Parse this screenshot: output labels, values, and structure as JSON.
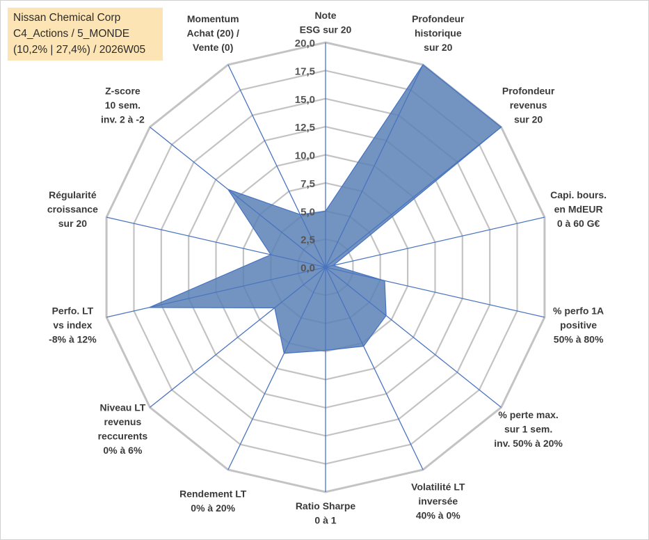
{
  "info_box": {
    "line1": "Nissan Chemical Corp",
    "line2": "C4_Actions / 5_MONDE",
    "line3": "(10,2% | 27,4%) / 2026W05"
  },
  "chart_data": {
    "type": "radar",
    "range": [
      0,
      20
    ],
    "tick_values": [
      0,
      2.5,
      5,
      7.5,
      10,
      12.5,
      15,
      17.5,
      20
    ],
    "tick_labels": [
      "0,0",
      "2,5",
      "5,0",
      "7,5",
      "10,0",
      "12,5",
      "15,0",
      "17,5",
      "20,0"
    ],
    "axes": [
      [
        "Note",
        "ESG sur 20"
      ],
      [
        "Profondeur",
        "historique",
        "sur 20"
      ],
      [
        "Profondeur",
        "revenus",
        "sur 20"
      ],
      [
        "Capi. bours.",
        "en MdEUR",
        "0 à 60 G€"
      ],
      [
        "% perfo 1A",
        "positive",
        "50% à 80%"
      ],
      [
        "% perte max.",
        "sur 1 sem.",
        "inv. 50% à 20%"
      ],
      [
        "Volatilité LT",
        "inversée",
        "40% à 0%"
      ],
      [
        "Ratio Sharpe",
        "0 à 1"
      ],
      [
        "Rendement LT",
        "0% à 20%"
      ],
      [
        "Niveau LT",
        "revenus",
        "reccurents",
        "0% à 6%"
      ],
      [
        "Perfo. LT",
        "vs index",
        "-8% à 12%"
      ],
      [
        "Régularité",
        "croissance",
        "sur 20"
      ],
      [
        "Z-score",
        "10 sem.",
        "inv. 2 à -2"
      ],
      [
        "Momentum",
        "Achat (20) /",
        "Vente (0)"
      ]
    ],
    "values": [
      5.0,
      20.0,
      20.0,
      0.7,
      5.4,
      6.9,
      7.8,
      7.4,
      8.5,
      5.8,
      16.1,
      5.0,
      11.1,
      5.2
    ],
    "colors": {
      "fill": "#5a81b5",
      "stroke": "#4472c4",
      "grid": "#c3c3c3",
      "spoke": "#4a74c0"
    }
  }
}
